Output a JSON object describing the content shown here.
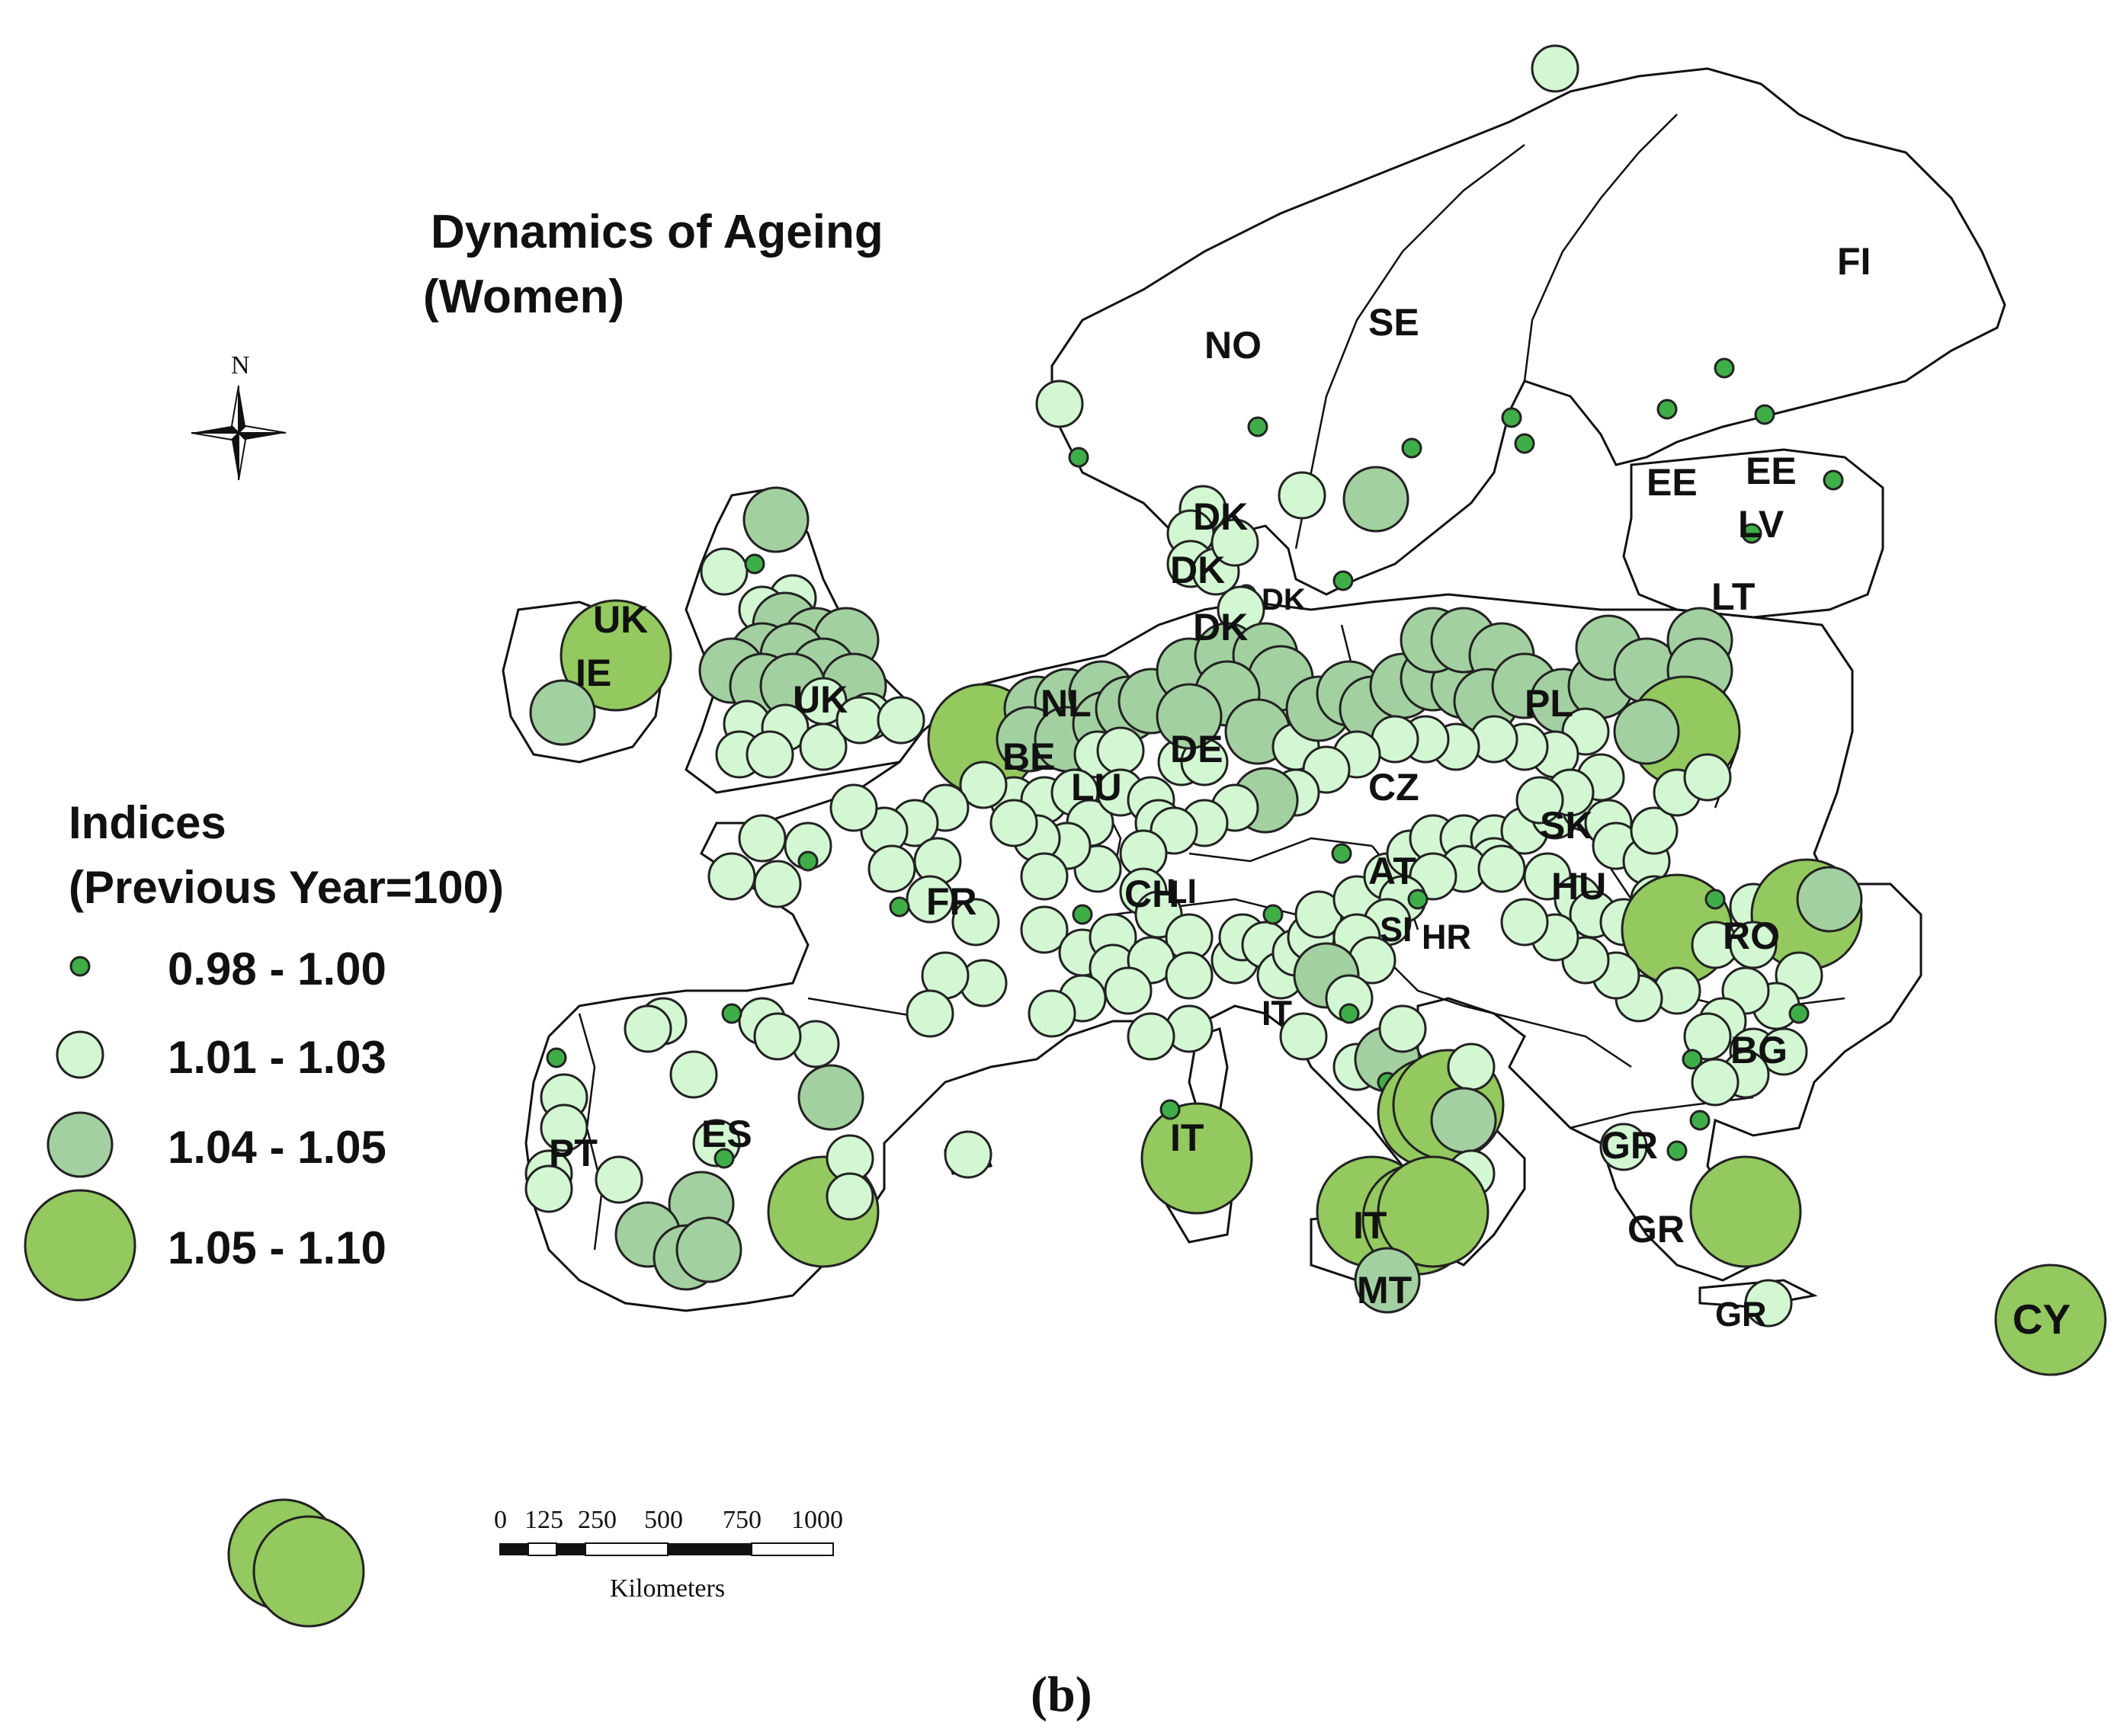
{
  "title": {
    "line1": "Dynamics of Ageing",
    "line2": "(Women)"
  },
  "compass": {
    "north_label": "N",
    "icon": "north-arrow-icon"
  },
  "legend": {
    "title_line1": "Indices",
    "title_line2": "(Previous Year=100)",
    "classes": [
      {
        "label": "0.98 - 1.00",
        "class": "c1",
        "color": "#3fae49"
      },
      {
        "label": "1.01 - 1.03",
        "class": "c2",
        "color": "#d2f7d2"
      },
      {
        "label": "1.04 - 1.05",
        "class": "c3",
        "color": "#a3d0a0"
      },
      {
        "label": "1.05 - 1.10",
        "class": "c4",
        "color": "#93c95e"
      }
    ]
  },
  "scale_bar": {
    "ticks": [
      "0",
      "125",
      "250",
      "500",
      "750",
      "1000"
    ],
    "unit": "Kilometers"
  },
  "caption": "(b)",
  "country_labels": [
    "NO",
    "SE",
    "FI",
    "EE",
    "EE",
    "LV",
    "LT",
    "DK",
    "DK",
    "DK",
    "DK",
    "UK",
    "UK",
    "IE",
    "NL",
    "BE",
    "LU",
    "DE",
    "PL",
    "CZ",
    "SK",
    "AT",
    "HU",
    "FR",
    "CH",
    "LI",
    "SI",
    "HR",
    "RO",
    "BG",
    "IT",
    "IT",
    "IT",
    "MT",
    "ES",
    "PT",
    "GR",
    "GR",
    "GR",
    "CY"
  ]
}
